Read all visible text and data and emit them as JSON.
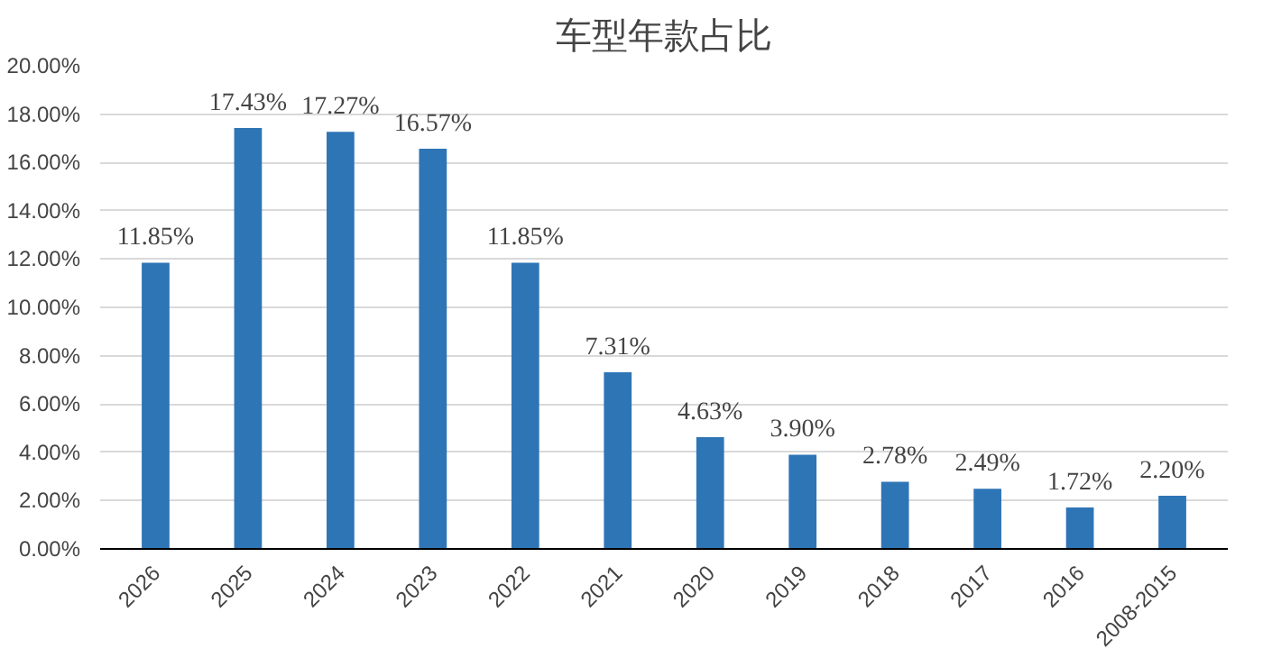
{
  "chart_data": {
    "type": "bar",
    "title": "车型年款占比",
    "categories": [
      "2026",
      "2025",
      "2024",
      "2023",
      "2022",
      "2021",
      "2020",
      "2019",
      "2018",
      "2017",
      "2016",
      "2008-2015"
    ],
    "values": [
      11.85,
      17.43,
      17.27,
      16.57,
      11.85,
      7.31,
      4.63,
      3.9,
      2.78,
      2.49,
      1.72,
      2.2
    ],
    "value_labels": [
      "11.85%",
      "17.43%",
      "17.27%",
      "16.57%",
      "11.85%",
      "7.31%",
      "4.63%",
      "3.90%",
      "2.78%",
      "2.49%",
      "1.72%",
      "2.20%"
    ],
    "color": "#2e75b6",
    "ylim": [
      0,
      20
    ],
    "yticks": [
      {
        "value": 0,
        "label": "0.00%"
      },
      {
        "value": 2,
        "label": "2.00%"
      },
      {
        "value": 4,
        "label": "4.00%"
      },
      {
        "value": 6,
        "label": "6.00%"
      },
      {
        "value": 8,
        "label": "8.00%"
      },
      {
        "value": 10,
        "label": "10.00%"
      },
      {
        "value": 12,
        "label": "12.00%"
      },
      {
        "value": 14,
        "label": "14.00%"
      },
      {
        "value": 16,
        "label": "16.00%"
      },
      {
        "value": 18,
        "label": "18.00%"
      },
      {
        "value": 20,
        "label": "20.00%"
      }
    ],
    "grid": "y"
  }
}
